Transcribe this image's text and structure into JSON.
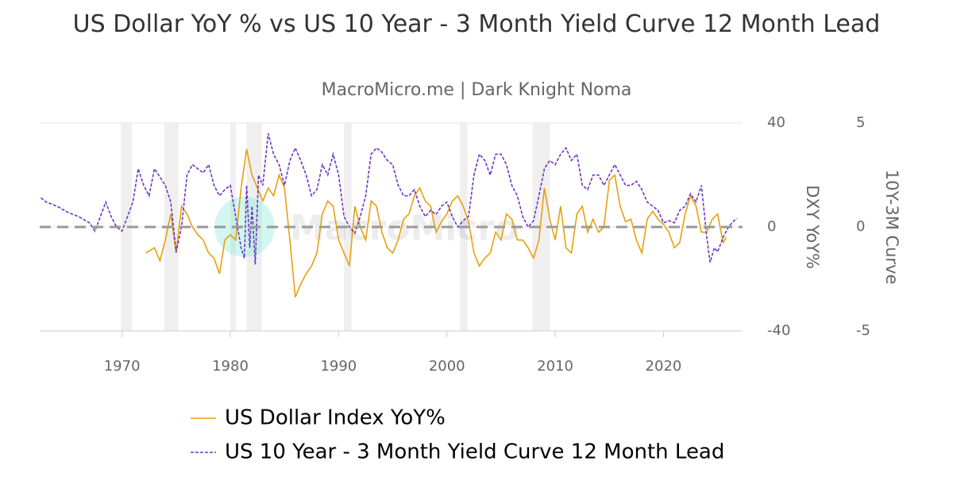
{
  "chart_data": {
    "type": "line",
    "title": "US Dollar YoY % vs US 10 Year - 3 Month Yield Curve 12 Month Lead",
    "subtitle": "MacroMicro.me | Dark Knight Noma",
    "watermark": "MacroMicro",
    "y_label": "DXY YoY%",
    "y2_label": "10Y-3M Curve",
    "xlim": [
      1962.4,
      2027.3
    ],
    "xticks": [
      1970,
      1980,
      1990,
      2000,
      2010,
      2020
    ],
    "ylim": [
      -40,
      40
    ],
    "yticks": [
      -40,
      0,
      40
    ],
    "y2lim": [
      -5,
      5
    ],
    "y2ticks": [
      -5,
      0,
      5
    ],
    "zero_line": 0,
    "shaded_periods": [
      [
        1969.9,
        1970.9
      ],
      [
        1973.9,
        1975.2
      ],
      [
        1980.0,
        1980.5
      ],
      [
        1981.5,
        1982.9
      ],
      [
        1990.5,
        1991.2
      ],
      [
        2001.2,
        2001.9
      ],
      [
        2007.9,
        2009.5
      ]
    ],
    "series": [
      {
        "name": "US Dollar Index YoY%",
        "color": "#e8a00c",
        "dashed": false,
        "x": [
          1972.2,
          1973,
          1973.5,
          1974,
          1974.5,
          1975,
          1975.5,
          1976,
          1976.5,
          1977,
          1977.5,
          1978,
          1978.5,
          1979,
          1979.5,
          1980,
          1980.5,
          1981,
          1981.5,
          1982,
          1982.5,
          1983,
          1983.5,
          1984,
          1984.5,
          1985,
          1985.5,
          1986,
          1986.5,
          1987,
          1987.5,
          1988,
          1988.5,
          1989,
          1989.5,
          1990,
          1990.5,
          1991,
          1991.5,
          1992,
          1992.5,
          1993,
          1993.5,
          1994,
          1994.5,
          1995,
          1995.5,
          1996,
          1996.5,
          1997,
          1997.5,
          1998,
          1998.5,
          1999,
          1999.5,
          2000,
          2000.5,
          2001,
          2001.5,
          2002,
          2002.5,
          2003,
          2003.5,
          2004,
          2004.5,
          2005,
          2005.5,
          2006,
          2006.5,
          2007,
          2007.5,
          2008,
          2008.5,
          2009,
          2009.5,
          2010,
          2010.5,
          2011,
          2011.5,
          2012,
          2012.5,
          2013,
          2013.5,
          2014,
          2014.5,
          2015,
          2015.5,
          2016,
          2016.5,
          2017,
          2017.5,
          2018,
          2018.5,
          2019,
          2019.5,
          2020,
          2020.5,
          2021,
          2021.5,
          2022,
          2022.5,
          2023,
          2023.5,
          2024,
          2024.5,
          2025,
          2025.5,
          2025.8
        ],
        "values": [
          -10,
          -8,
          -13,
          -5,
          5,
          -10,
          8,
          5,
          0,
          -3,
          -5,
          -10,
          -12,
          -18,
          -5,
          -3,
          -5,
          15,
          30,
          20,
          15,
          10,
          15,
          12,
          20,
          15,
          -5,
          -27,
          -22,
          -18,
          -15,
          -10,
          5,
          10,
          8,
          -5,
          -10,
          -15,
          8,
          0,
          -5,
          10,
          8,
          -2,
          -8,
          -10,
          -5,
          3,
          5,
          12,
          15,
          10,
          8,
          -2,
          2,
          5,
          10,
          12,
          8,
          2,
          -10,
          -15,
          -12,
          -10,
          -2,
          -5,
          5,
          3,
          -5,
          -5,
          -8,
          -12,
          -5,
          15,
          3,
          -5,
          8,
          -8,
          -10,
          5,
          8,
          -2,
          3,
          -2,
          0,
          18,
          20,
          8,
          2,
          3,
          -5,
          -10,
          3,
          6,
          3,
          1,
          -2,
          -8,
          -6,
          5,
          12,
          8,
          -2,
          -2,
          3,
          5,
          -6,
          -4
        ]
      },
      {
        "name": "US 10 Year - 3 Month Yield Curve 12 Month Lead",
        "color": "#6f35c0",
        "dashed": true,
        "axis": "y2",
        "x": [
          1962.5,
          1963,
          1964,
          1965,
          1966,
          1967,
          1967.5,
          1968,
          1968.5,
          1969,
          1969.5,
          1970,
          1970.5,
          1971,
          1971.5,
          1972,
          1972.5,
          1973,
          1973.5,
          1974,
          1974.5,
          1975,
          1975.5,
          1976,
          1976.5,
          1977,
          1977.5,
          1978,
          1978.5,
          1979,
          1979.5,
          1980,
          1980.5,
          1981,
          1981.3,
          1981.5,
          1981.8,
          1982,
          1982.3,
          1982.6,
          1983,
          1983.5,
          1984,
          1984.5,
          1985,
          1985.5,
          1986,
          1986.5,
          1987,
          1987.5,
          1988,
          1988.5,
          1989,
          1989.5,
          1990,
          1990.5,
          1991,
          1991.5,
          1992,
          1992.5,
          1993,
          1993.5,
          1994,
          1994.5,
          1995,
          1995.5,
          1996,
          1996.5,
          1997,
          1997.5,
          1998,
          1998.5,
          1999,
          1999.5,
          2000,
          2000.5,
          2001,
          2001.5,
          2002,
          2002.5,
          2003,
          2003.5,
          2004,
          2004.5,
          2005,
          2005.5,
          2006,
          2006.5,
          2007,
          2007.5,
          2008,
          2008.5,
          2009,
          2009.5,
          2010,
          2010.5,
          2011,
          2011.5,
          2012,
          2012.5,
          2013,
          2013.5,
          2014,
          2014.5,
          2015,
          2015.5,
          2016,
          2016.5,
          2017,
          2017.5,
          2018,
          2018.5,
          2019,
          2019.5,
          2020,
          2020.5,
          2021,
          2021.5,
          2022,
          2022.5,
          2023,
          2023.5,
          2024,
          2024.3,
          2024.7,
          2025,
          2025.5,
          2026,
          2026.5,
          2026.8
        ],
        "values": [
          1.4,
          1.2,
          1.0,
          0.7,
          0.5,
          0.2,
          -0.2,
          0.5,
          1.2,
          0.5,
          0,
          -0.2,
          0.5,
          1.2,
          2.8,
          2.0,
          1.5,
          2.8,
          2.4,
          2.0,
          1.2,
          -1.2,
          0,
          2.5,
          3.0,
          2.8,
          2.6,
          3.0,
          2.0,
          1.5,
          1.8,
          2.0,
          0.5,
          -1.0,
          -1.5,
          2.0,
          -1.0,
          1.0,
          -1.8,
          2.5,
          2.0,
          4.5,
          3.5,
          3.0,
          2.0,
          3.2,
          3.8,
          3.2,
          2.5,
          1.5,
          1.8,
          3.0,
          2.5,
          3.5,
          2.5,
          0.5,
          0,
          -0.3,
          0.5,
          1.5,
          3.5,
          3.8,
          3.6,
          3.2,
          3.0,
          2.0,
          1.5,
          1.5,
          1.8,
          1.0,
          0.5,
          0.8,
          0.6,
          1.0,
          1.2,
          0.5,
          0,
          0.3,
          0.5,
          2.5,
          3.5,
          3.2,
          2.5,
          3.5,
          3.5,
          3.0,
          2.0,
          1.5,
          0.5,
          0,
          0.3,
          1.5,
          2.8,
          3.2,
          3.0,
          3.5,
          3.8,
          3.2,
          3.5,
          2.0,
          1.8,
          2.5,
          2.5,
          2.0,
          2.5,
          3.0,
          2.5,
          2.0,
          2.0,
          2.2,
          1.8,
          1.2,
          1.0,
          0.8,
          0.2,
          0.3,
          0.2,
          0.8,
          1.0,
          1.6,
          1.2,
          2.0,
          -0.5,
          -1.7,
          -1.0,
          -1.2,
          -0.5,
          0,
          0.3,
          0.4
        ]
      }
    ]
  }
}
